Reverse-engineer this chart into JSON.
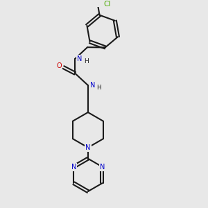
{
  "background_color": "#e8e8e8",
  "line_color": "#1a1a1a",
  "N_color": "#0000cc",
  "O_color": "#cc0000",
  "Cl_color": "#4aaa00",
  "bond_width": 1.5,
  "font_size": 7.0,
  "figsize": [
    3.0,
    3.0
  ],
  "dpi": 100,
  "xlim": [
    0,
    10
  ],
  "ylim": [
    0,
    10
  ]
}
